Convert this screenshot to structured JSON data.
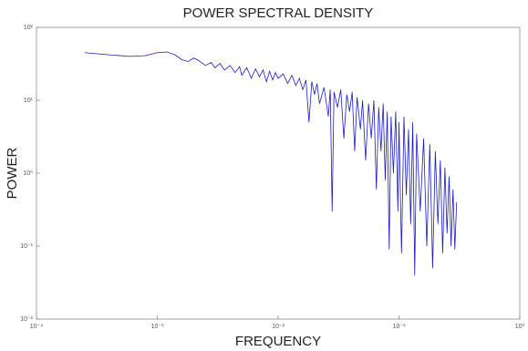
{
  "chart_data": {
    "type": "line",
    "title": "POWER SPECTRAL DENSITY",
    "x_label": "FREQUENCY",
    "y_label": "POWER",
    "x_scale": "log",
    "y_scale": "log",
    "xlim": [
      0.0001,
      1
    ],
    "ylim": [
      0.01,
      100
    ],
    "xticks": [
      {
        "value": 0.0001,
        "label": "10⁻⁴"
      },
      {
        "value": 0.001,
        "label": "10⁻³"
      },
      {
        "value": 0.01,
        "label": "10⁻²"
      },
      {
        "value": 0.1,
        "label": "10⁻¹"
      },
      {
        "value": 1,
        "label": "10⁰"
      }
    ],
    "yticks": [
      {
        "value": 0.01,
        "label": "10⁻²"
      },
      {
        "value": 0.1,
        "label": "10⁻¹"
      },
      {
        "value": 1,
        "label": "10⁰"
      },
      {
        "value": 10,
        "label": "10¹"
      },
      {
        "value": 100,
        "label": "10²"
      }
    ],
    "series": [
      {
        "color": "#1c1cc4",
        "x": [
          0.00025,
          0.0004,
          0.0006,
          0.0008,
          0.001,
          0.0012,
          0.0014,
          0.0016,
          0.0018,
          0.002,
          0.0022,
          0.0025,
          0.0028,
          0.003,
          0.0033,
          0.0036,
          0.004,
          0.0044,
          0.0048,
          0.005,
          0.0055,
          0.006,
          0.0065,
          0.007,
          0.0075,
          0.008,
          0.0085,
          0.009,
          0.0095,
          0.01,
          0.011,
          0.012,
          0.013,
          0.014,
          0.015,
          0.016,
          0.017,
          0.018,
          0.019,
          0.02,
          0.021,
          0.022,
          0.024,
          0.026,
          0.027,
          0.028,
          0.029,
          0.031,
          0.033,
          0.035,
          0.037,
          0.039,
          0.041,
          0.043,
          0.045,
          0.048,
          0.05,
          0.053,
          0.056,
          0.059,
          0.062,
          0.065,
          0.068,
          0.071,
          0.074,
          0.077,
          0.08,
          0.083,
          0.086,
          0.09,
          0.094,
          0.098,
          0.1,
          0.105,
          0.11,
          0.115,
          0.12,
          0.125,
          0.13,
          0.135,
          0.14,
          0.15,
          0.16,
          0.17,
          0.18,
          0.19,
          0.2,
          0.21,
          0.22,
          0.23,
          0.24,
          0.25,
          0.26,
          0.27,
          0.28,
          0.29,
          0.3
        ],
        "values": [
          45,
          42,
          40,
          41,
          45,
          46,
          42,
          36,
          34,
          38,
          35,
          30,
          33,
          28,
          32,
          26,
          30,
          24,
          29,
          22,
          28,
          20,
          27,
          21,
          26,
          18,
          25,
          19,
          24,
          20,
          23,
          17,
          22,
          16,
          20,
          14,
          19,
          5,
          18,
          12,
          17,
          9,
          15,
          6,
          14,
          0.3,
          13,
          8,
          14,
          3,
          12,
          7,
          13,
          2,
          11,
          4,
          10,
          1.5,
          9,
          3,
          10,
          0.6,
          8,
          2,
          9,
          0.8,
          7,
          0.09,
          6,
          1,
          7,
          0.3,
          5,
          0.08,
          6,
          0.5,
          4,
          0.2,
          5,
          0.04,
          3.5,
          0.3,
          3,
          0.1,
          2.5,
          0.05,
          2,
          0.2,
          1.5,
          0.08,
          1.2,
          0.15,
          0.9,
          0.1,
          0.6,
          0.09,
          0.4
        ]
      }
    ]
  }
}
